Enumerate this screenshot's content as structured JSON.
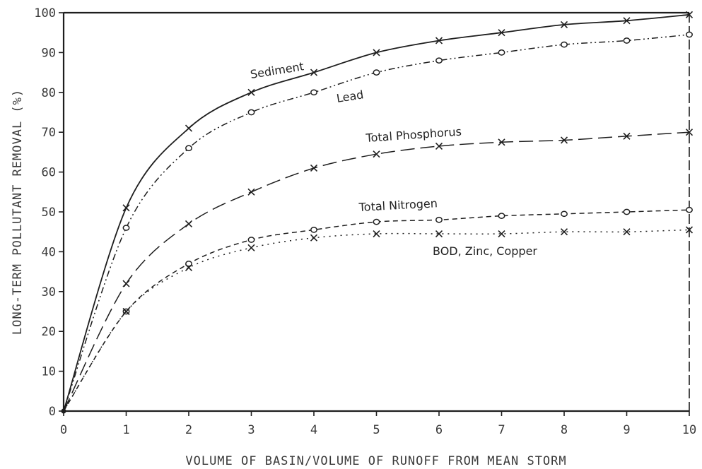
{
  "chart_data": {
    "type": "line",
    "title": "",
    "xlabel": "VOLUME OF BASIN/VOLUME OF RUNOFF FROM MEAN STORM",
    "ylabel": "LONG-TERM POLLUTANT REMOVAL (%)",
    "xlim": [
      0,
      10
    ],
    "ylim": [
      0,
      100
    ],
    "x_ticks": [
      "0",
      "1",
      "2",
      "3",
      "4",
      "5",
      "6",
      "7",
      "8",
      "9",
      "10"
    ],
    "y_ticks": [
      "0",
      "10",
      "20",
      "30",
      "40",
      "50",
      "60",
      "70",
      "80",
      "90",
      "100"
    ],
    "grid": false,
    "legend": "none (series labelled directly on curves)",
    "x": [
      0,
      1,
      2,
      3,
      4,
      5,
      6,
      7,
      8,
      9,
      10
    ],
    "series": [
      {
        "name": "Sediment",
        "marker": "x",
        "line": "solid",
        "values": [
          0,
          51,
          71,
          80,
          85,
          90,
          93,
          95,
          97,
          98,
          99.5
        ]
      },
      {
        "name": "Lead",
        "marker": "o",
        "line": "dash-dot-dot",
        "values": [
          0,
          46,
          66,
          75,
          80,
          85,
          88,
          90,
          92,
          93,
          94.5
        ]
      },
      {
        "name": "Total Phosphorus",
        "marker": "x",
        "line": "long-dash",
        "values": [
          0,
          32,
          47,
          55,
          61,
          64.5,
          66.5,
          67.5,
          68,
          69,
          70
        ]
      },
      {
        "name": "Total Nitrogen",
        "marker": "o",
        "line": "short-dash",
        "values": [
          0,
          25,
          37,
          43,
          45.5,
          47.5,
          48,
          49,
          49.5,
          50,
          50.5
        ]
      },
      {
        "name": "BOD, Zinc, Copper",
        "marker": "x",
        "line": "dotted",
        "values": [
          0,
          25,
          36,
          41,
          43.5,
          44.5,
          44.5,
          44.5,
          45,
          45,
          45.5
        ]
      }
    ],
    "colors": {
      "ink": "#1e1e1e",
      "text": "#3a3a3a"
    }
  }
}
